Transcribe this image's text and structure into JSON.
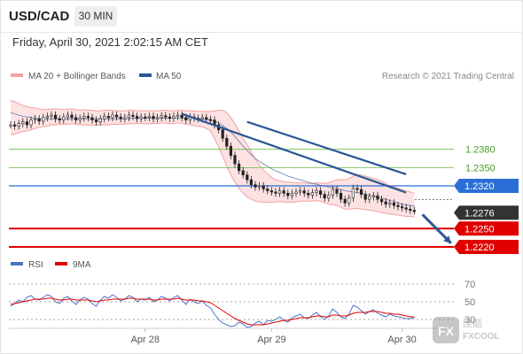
{
  "header": {
    "symbol": "USD/CAD",
    "timeframe": "30 MIN"
  },
  "datetime": "Friday, April 30, 2021 2:02:15 AM CET",
  "legend": {
    "bb": "MA 20 + Bollinger Bands",
    "ma50": "MA 50",
    "credit": "Research © 2021 Trading Central"
  },
  "rsi_legend": {
    "rsi": "RSI",
    "ma": "9MA"
  },
  "watermark": {
    "brand": "FXCOOL"
  },
  "colors": {
    "support": "#e00000",
    "resistance": "#2b6fd6",
    "target": "#66bb44",
    "pivot_tag": "#333333",
    "trend": "#2b5797",
    "bb": "#f4a0a0",
    "ma50": "#2b5797",
    "rsi": "#4a76c8",
    "rsi_ma": "#e00000"
  },
  "chart_data": {
    "type": "line",
    "price_range": [
      1.2204,
      1.2468
    ],
    "x_ticks": [
      "Apr 28",
      "Apr 29",
      "Apr 30"
    ],
    "levels": [
      {
        "label": "1.2380",
        "value": 1.238,
        "kind": "target"
      },
      {
        "label": "1.2350",
        "value": 1.235,
        "kind": "target"
      },
      {
        "label": "1.2320",
        "value": 1.232,
        "kind": "resistance"
      },
      {
        "label": "1.2276",
        "value": 1.2276,
        "kind": "pivot"
      },
      {
        "label": "1.2250",
        "value": 1.225,
        "kind": "support"
      },
      {
        "label": "1.2220",
        "value": 1.222,
        "kind": "support"
      }
    ],
    "price": [
      1.242,
      1.2418,
      1.2422,
      1.2425,
      1.242,
      1.2428,
      1.243,
      1.2426,
      1.2432,
      1.2434,
      1.2436,
      1.243,
      1.2428,
      1.2433,
      1.2436,
      1.2432,
      1.2428,
      1.2431,
      1.2434,
      1.2432,
      1.2428,
      1.2425,
      1.243,
      1.2434,
      1.2432,
      1.2436,
      1.2433,
      1.243,
      1.2432,
      1.2436,
      1.2434,
      1.243,
      1.2433,
      1.2432,
      1.2434,
      1.243,
      1.2432,
      1.2435,
      1.2433,
      1.2431,
      1.2434,
      1.2436,
      1.2432,
      1.2428,
      1.2433,
      1.2431,
      1.243,
      1.2432,
      1.2429,
      1.2428,
      1.242,
      1.2412,
      1.2398,
      1.2385,
      1.237,
      1.2356,
      1.2345,
      1.2338,
      1.233,
      1.2322,
      1.2318,
      1.232,
      1.2315,
      1.2312,
      1.231,
      1.2308,
      1.2312,
      1.2308,
      1.2304,
      1.2308,
      1.231,
      1.2312,
      1.2308,
      1.2305,
      1.2309,
      1.2312,
      1.2306,
      1.23,
      1.2305,
      1.2314,
      1.2308,
      1.2298,
      1.2292,
      1.23,
      1.2316,
      1.2314,
      1.2306,
      1.2298,
      1.2302,
      1.2304,
      1.2298,
      1.2294,
      1.229,
      1.2292,
      1.2288,
      1.2286,
      1.2284,
      1.2282,
      1.228,
      1.2279
    ],
    "bb_upper": [
      1.246,
      1.2458,
      1.2455,
      1.2452,
      1.245,
      1.2448,
      1.2448,
      1.2446,
      1.2445,
      1.2445,
      1.2446,
      1.2446,
      1.2446,
      1.2445,
      1.2446,
      1.2446,
      1.2445,
      1.2444,
      1.2445,
      1.2444,
      1.2444,
      1.2443,
      1.2443,
      1.2444,
      1.2444,
      1.2444,
      1.2443,
      1.2443,
      1.2443,
      1.2444,
      1.2444,
      1.2443,
      1.2443,
      1.2443,
      1.2443,
      1.2443,
      1.2443,
      1.2444,
      1.2444,
      1.2443,
      1.2443,
      1.2444,
      1.2444,
      1.2443,
      1.2443,
      1.2443,
      1.2442,
      1.2442,
      1.2442,
      1.2442,
      1.2443,
      1.2444,
      1.2444,
      1.244,
      1.2432,
      1.2422,
      1.241,
      1.2398,
      1.2388,
      1.2376,
      1.2364,
      1.2354,
      1.2346,
      1.234,
      1.2334,
      1.233,
      1.2328,
      1.2327,
      1.2326,
      1.2326,
      1.2325,
      1.2325,
      1.2325,
      1.2324,
      1.2324,
      1.2325,
      1.2325,
      1.2324,
      1.2325,
      1.2328,
      1.233,
      1.233,
      1.233,
      1.2332,
      1.2336,
      1.2338,
      1.2338,
      1.2336,
      1.2334,
      1.2332,
      1.233,
      1.2328,
      1.2324,
      1.232,
      1.2318,
      1.2316,
      1.2314,
      1.2312,
      1.231,
      1.2308
    ],
    "bb_lower": [
      1.2404,
      1.2405,
      1.2407,
      1.2409,
      1.241,
      1.2412,
      1.2414,
      1.2416,
      1.2417,
      1.2418,
      1.242,
      1.242,
      1.2421,
      1.2421,
      1.2421,
      1.2422,
      1.2421,
      1.242,
      1.242,
      1.242,
      1.2419,
      1.2419,
      1.242,
      1.242,
      1.242,
      1.2421,
      1.2421,
      1.2421,
      1.2421,
      1.2422,
      1.2422,
      1.2422,
      1.2422,
      1.2422,
      1.2422,
      1.2422,
      1.2422,
      1.2423,
      1.2423,
      1.2422,
      1.2422,
      1.2423,
      1.2423,
      1.2421,
      1.242,
      1.2419,
      1.2418,
      1.2417,
      1.2414,
      1.241,
      1.2398,
      1.2384,
      1.2368,
      1.2352,
      1.2338,
      1.2326,
      1.2316,
      1.2308,
      1.2302,
      1.2298,
      1.2295,
      1.2294,
      1.2293,
      1.2293,
      1.2293,
      1.2294,
      1.2294,
      1.2294,
      1.2293,
      1.2293,
      1.2294,
      1.2295,
      1.2295,
      1.2295,
      1.2295,
      1.2296,
      1.2295,
      1.2292,
      1.229,
      1.2289,
      1.2288,
      1.2285,
      1.2282,
      1.2282,
      1.2283,
      1.2283,
      1.2282,
      1.2281,
      1.228,
      1.2279,
      1.2278,
      1.2276,
      1.2275,
      1.2274,
      1.2273,
      1.2272,
      1.2271,
      1.227,
      1.227,
      1.2269
    ],
    "ma50": [
      1.244,
      1.2438,
      1.2436,
      1.2434,
      1.2433,
      1.2432,
      1.2431,
      1.243,
      1.243,
      1.243,
      1.243,
      1.243,
      1.243,
      1.243,
      1.243,
      1.243,
      1.243,
      1.243,
      1.243,
      1.243,
      1.243,
      1.243,
      1.243,
      1.243,
      1.243,
      1.243,
      1.243,
      1.243,
      1.243,
      1.243,
      1.2431,
      1.2431,
      1.2431,
      1.2431,
      1.2431,
      1.2431,
      1.2431,
      1.2431,
      1.2431,
      1.2431,
      1.2431,
      1.2431,
      1.2431,
      1.2431,
      1.2431,
      1.2431,
      1.243,
      1.243,
      1.2429,
      1.2428,
      1.2426,
      1.2423,
      1.2419,
      1.2414,
      1.2408,
      1.2401,
      1.2393,
      1.2385,
      1.2378,
      1.2371,
      1.2365,
      1.236,
      1.2356,
      1.2352,
      1.2348,
      1.2345,
      1.2342,
      1.2339,
      1.2336,
      1.2334,
      1.2332,
      1.233,
      1.2328,
      1.2326,
      1.2324,
      1.2323,
      1.2321,
      1.232,
      1.2318,
      1.2317,
      1.2316,
      1.2314,
      1.2312,
      1.2311,
      1.231,
      1.2309,
      1.2308,
      1.2306,
      1.2305,
      1.2304,
      1.2302,
      1.23,
      1.2298,
      1.2296,
      1.2294,
      1.2292,
      1.229,
      1.2289,
      1.2288,
      1.2287
    ],
    "rsi": [
      45,
      48,
      52,
      50,
      55,
      57,
      53,
      52,
      55,
      58,
      56,
      50,
      48,
      54,
      56,
      51,
      47,
      52,
      55,
      53,
      48,
      45,
      52,
      56,
      54,
      58,
      55,
      51,
      53,
      57,
      55,
      50,
      53,
      52,
      55,
      50,
      52,
      56,
      54,
      51,
      55,
      57,
      52,
      47,
      53,
      50,
      48,
      51,
      46,
      43,
      36,
      30,
      26,
      24,
      22,
      23,
      27,
      25,
      21,
      22,
      26,
      28,
      24,
      29,
      28,
      30,
      33,
      29,
      27,
      32,
      34,
      36,
      32,
      31,
      35,
      38,
      33,
      30,
      34,
      42,
      38,
      33,
      31,
      36,
      46,
      44,
      40,
      36,
      39,
      41,
      37,
      35,
      33,
      36,
      34,
      33,
      32,
      31,
      31,
      32
    ],
    "rsi_ma": [
      47,
      48,
      49,
      50,
      51,
      52,
      53,
      53,
      53,
      54,
      54,
      53,
      52,
      52,
      53,
      53,
      52,
      52,
      52,
      52,
      51,
      50,
      51,
      52,
      52,
      53,
      53,
      53,
      53,
      54,
      54,
      53,
      53,
      53,
      53,
      52,
      52,
      53,
      53,
      53,
      53,
      54,
      53,
      52,
      52,
      52,
      51,
      51,
      50,
      49,
      46,
      43,
      40,
      37,
      34,
      31,
      29,
      27,
      25,
      24,
      24,
      24,
      24,
      25,
      26,
      27,
      28,
      29,
      29,
      30,
      31,
      32,
      32,
      32,
      33,
      34,
      34,
      33,
      33,
      35,
      35,
      34,
      34,
      35,
      37,
      38,
      38,
      38,
      39,
      39,
      39,
      38,
      37,
      37,
      36,
      36,
      35,
      34,
      33,
      33
    ],
    "rsi_levels": [
      70,
      50,
      30
    ],
    "trend_lines": [
      {
        "from": [
          42,
          1.2438
        ],
        "to": [
          97,
          1.2309
        ],
        "kind": "trend"
      },
      {
        "from": [
          58,
          1.2425
        ],
        "to": [
          97,
          1.2339
        ],
        "kind": "trend"
      },
      {
        "from": [
          101,
          1.2273
        ],
        "to": [
          108,
          1.2226
        ],
        "kind": "arrow"
      }
    ]
  }
}
